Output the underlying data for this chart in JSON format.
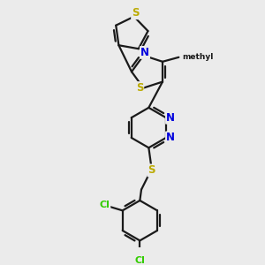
{
  "background_color": "#ebebeb",
  "bond_color": "#1a1a1a",
  "S_color": "#bbaa00",
  "N_color": "#0000dd",
  "Cl_color": "#33cc00",
  "line_width": 1.6,
  "figsize": [
    3.0,
    3.0
  ],
  "dpi": 100,
  "xlim": [
    -1.8,
    2.2
  ],
  "ylim": [
    -4.5,
    3.8
  ]
}
